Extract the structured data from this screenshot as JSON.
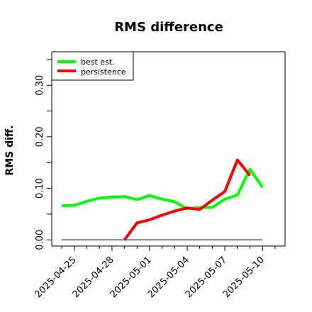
{
  "chart_data": {
    "type": "line",
    "title": "RMS difference",
    "xlabel": "",
    "ylabel": "RMS diff.",
    "x_tick_labels": [
      "2025-04-25",
      "2025-04-28",
      "2025-05-01",
      "2025-05-04",
      "2025-05-07",
      "2025-05-10"
    ],
    "x_tick_days": [
      1,
      4,
      7,
      10,
      13,
      16
    ],
    "y_ticks": [
      0.0,
      0.1,
      0.2,
      0.3
    ],
    "y_tick_labels": [
      "0.00",
      "0.10",
      "0.20",
      "0.30"
    ],
    "xlim": [
      -0.8,
      17.8
    ],
    "ylim": [
      -0.012,
      0.365
    ],
    "legend_position": "top-left",
    "reference_line": {
      "y": 0.0,
      "x_from": 0,
      "x_to": 16,
      "color": "#555555"
    },
    "series": [
      {
        "name": "best est.",
        "color": "#00ff00",
        "x": [
          0,
          1,
          2,
          3,
          4,
          5,
          6,
          7,
          8,
          9,
          10,
          11,
          12,
          13,
          14,
          15,
          16
        ],
        "values": [
          0.066,
          0.067,
          0.075,
          0.081,
          0.083,
          0.084,
          0.078,
          0.086,
          0.079,
          0.074,
          0.06,
          0.063,
          0.063,
          0.079,
          0.087,
          0.137,
          0.102
        ]
      },
      {
        "name": "persistence",
        "color": "#ff0000",
        "x": [
          5,
          6,
          7,
          8,
          9,
          10,
          11,
          12,
          13,
          14,
          15,
          16
        ],
        "values": [
          0.0,
          0.033,
          0.039,
          0.048,
          0.056,
          0.062,
          0.059,
          0.077,
          0.094,
          0.155,
          0.125,
          null
        ]
      }
    ]
  }
}
